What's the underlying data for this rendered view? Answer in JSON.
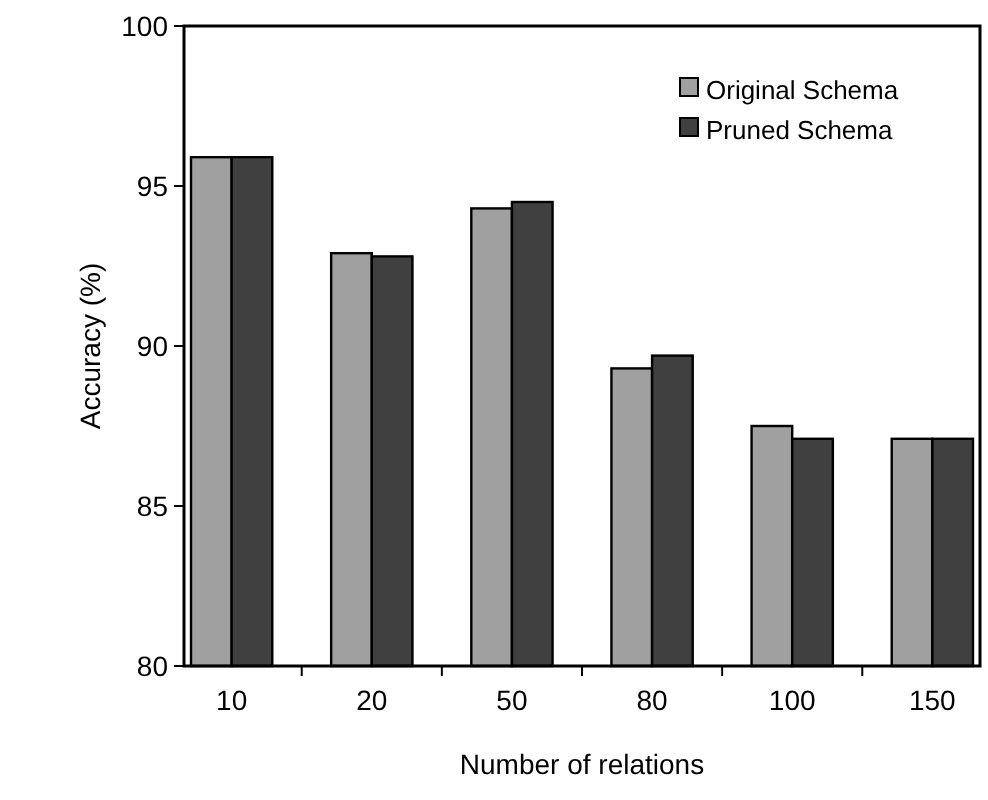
{
  "chart_data": {
    "type": "bar",
    "xlabel": "Number of relations",
    "ylabel": "Accuracy (%)",
    "categories": [
      "10",
      "20",
      "50",
      "80",
      "100",
      "150"
    ],
    "series": [
      {
        "name": "Original Schema",
        "color": "#a0a0a0",
        "values": [
          95.9,
          92.9,
          94.3,
          89.3,
          87.5,
          87.1
        ]
      },
      {
        "name": "Pruned Schema",
        "color": "#404040",
        "values": [
          95.9,
          92.8,
          94.5,
          89.7,
          87.1,
          87.1
        ]
      }
    ],
    "ylim": [
      80,
      100
    ],
    "yticks": [
      80,
      85,
      90,
      95,
      100
    ],
    "grid": false,
    "legend": "top right"
  }
}
